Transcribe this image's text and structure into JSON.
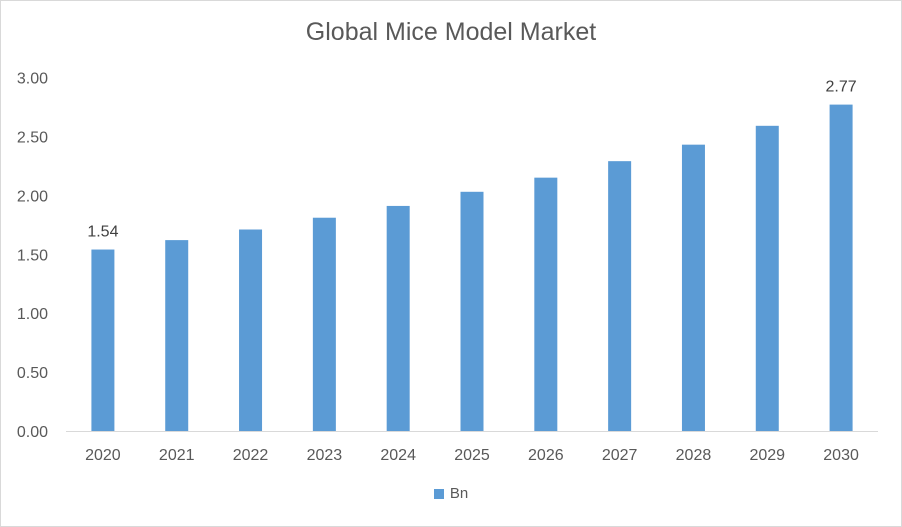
{
  "chart_data": {
    "type": "bar",
    "title": "Global Mice Model Market",
    "categories": [
      "2020",
      "2021",
      "2022",
      "2023",
      "2024",
      "2025",
      "2026",
      "2027",
      "2028",
      "2029",
      "2030"
    ],
    "series": [
      {
        "name": "Bn",
        "color": "#5b9bd5",
        "values": [
          1.54,
          1.62,
          1.71,
          1.81,
          1.91,
          2.03,
          2.15,
          2.29,
          2.43,
          2.59,
          2.77
        ]
      }
    ],
    "data_labels": [
      {
        "category": "2020",
        "text": "1.54"
      },
      {
        "category": "2030",
        "text": "2.77"
      }
    ],
    "y_ticks": [
      "0.00",
      "0.50",
      "1.00",
      "1.50",
      "2.00",
      "2.50",
      "3.00"
    ],
    "ylim": [
      0,
      3
    ],
    "xlabel": "",
    "ylabel": "",
    "legend_position": "bottom",
    "grid": false
  }
}
